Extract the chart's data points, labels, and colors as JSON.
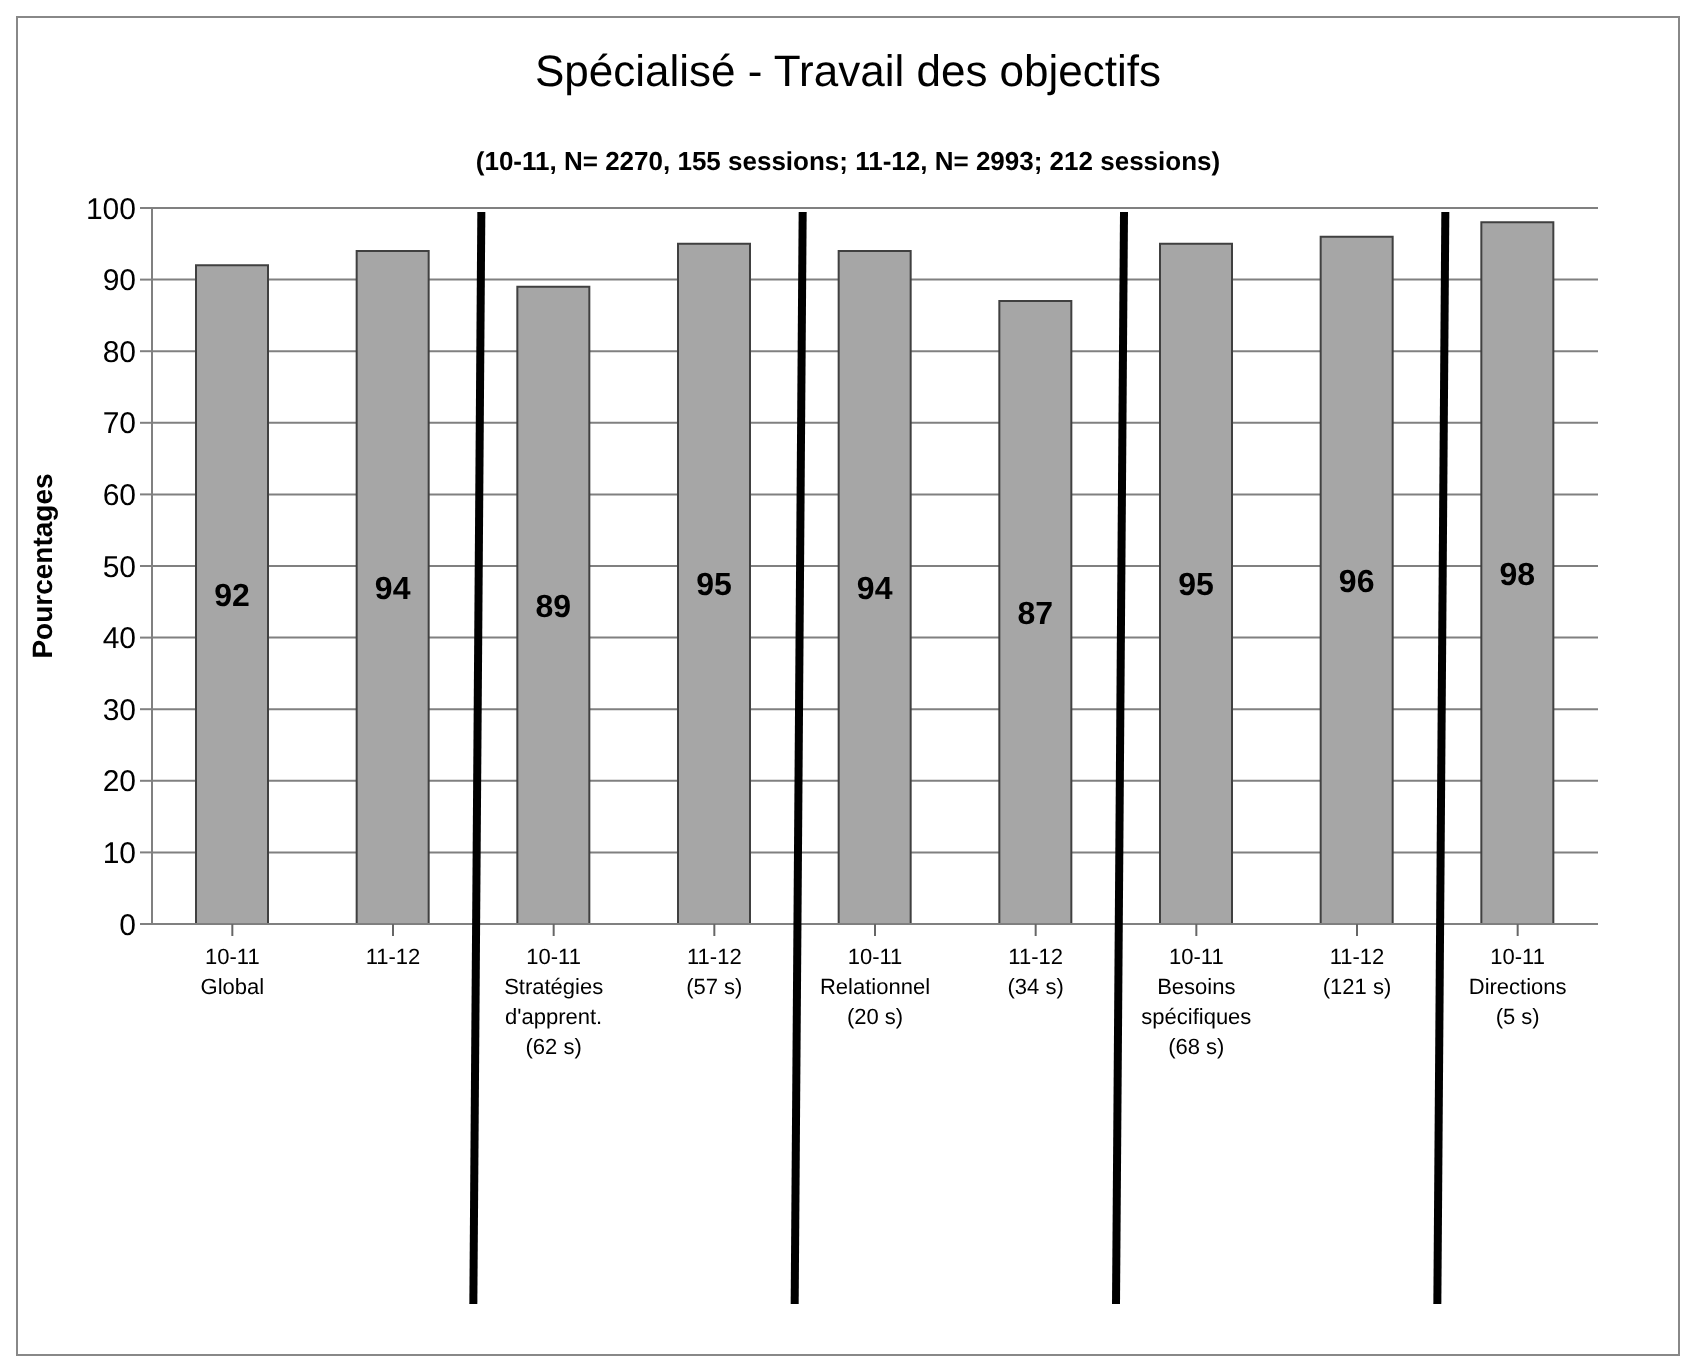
{
  "chart_data": {
    "type": "bar",
    "title": "Spécialisé - Travail des objectifs",
    "subtitle": "(10-11, N= 2270, 155 sessions; 11-12, N= 2993; 212 sessions)",
    "ylabel": "Pourcentages",
    "categories": [
      "10-11\nGlobal",
      "11-12",
      "10-11\nStratégies\nd'apprent.\n(62 s)",
      "11-12\n(57 s)",
      "10-11\nRelationnel\n(20 s)",
      "11-12\n(34 s)",
      "10-11\nBesoins\nspécifiques\n(68 s)",
      "11-12\n(121 s)",
      "10-11\nDirections\n(5 s)"
    ],
    "values": [
      92,
      94,
      89,
      95,
      94,
      87,
      95,
      96,
      98
    ],
    "color": "#a6a6a6",
    "ylim": [
      0,
      100
    ],
    "yticks": [
      0,
      10,
      20,
      30,
      40,
      50,
      60,
      70,
      80,
      90,
      100
    ],
    "grid": "y",
    "data_labels": true
  }
}
